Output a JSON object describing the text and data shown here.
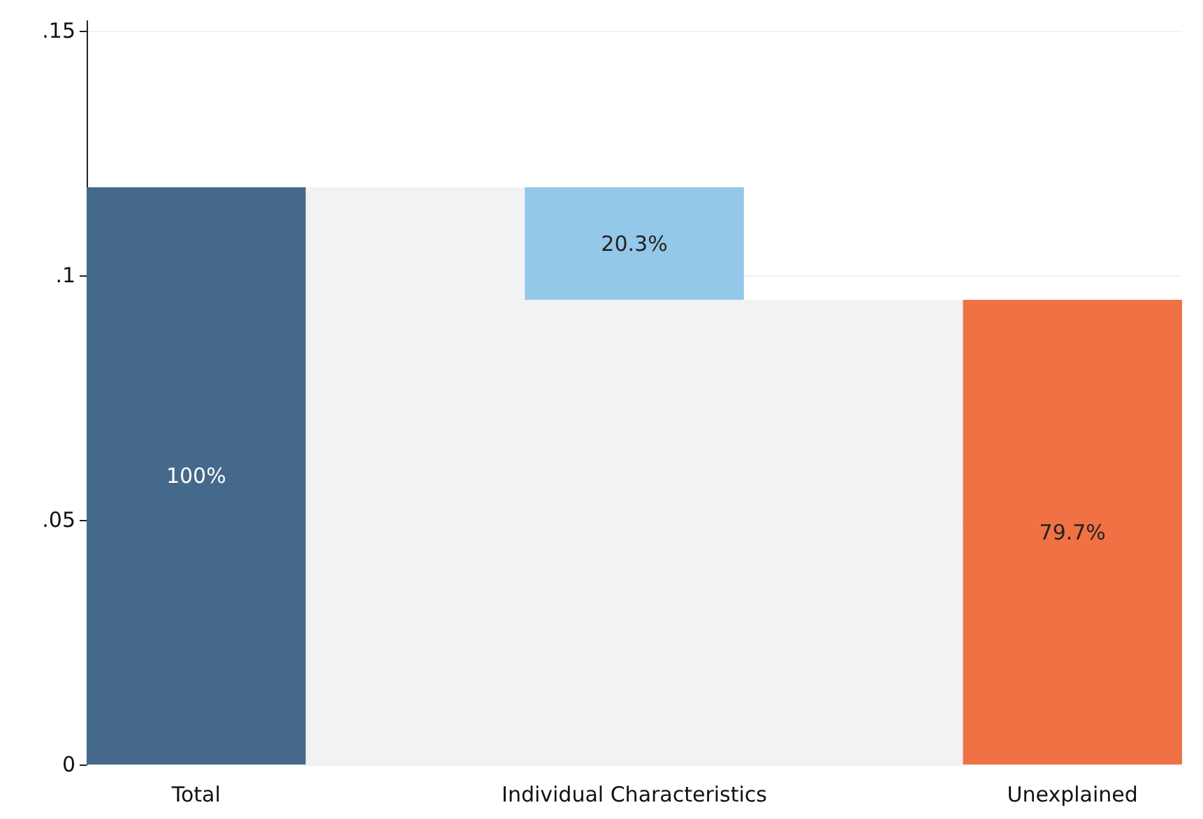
{
  "chart_data": {
    "type": "bar",
    "stacked": true,
    "categories": [
      "Total",
      null,
      "Individual Characteristics",
      null,
      "Unexplained"
    ],
    "series": [
      {
        "color": "#f1f2f3",
        "values": [
          null,
          0.118,
          0.095,
          0.095,
          null
        ]
      },
      {
        "colors": [
          "#44698a",
          null,
          "#94c8e8",
          null,
          "#f07244"
        ],
        "values": [
          0.118,
          null,
          0.023,
          null,
          0.095
        ]
      }
    ],
    "annotations": [
      "100%",
      "20.3%",
      "79.7%"
    ],
    "ylim": [
      0,
      0.152
    ],
    "yticks": [
      {
        "value": 0,
        "label": "0"
      },
      {
        "value": 0.05,
        "label": ".05"
      },
      {
        "value": 0.1,
        "label": ".1"
      },
      {
        "value": 0.15,
        "label": ".15"
      }
    ],
    "grid": "y"
  }
}
